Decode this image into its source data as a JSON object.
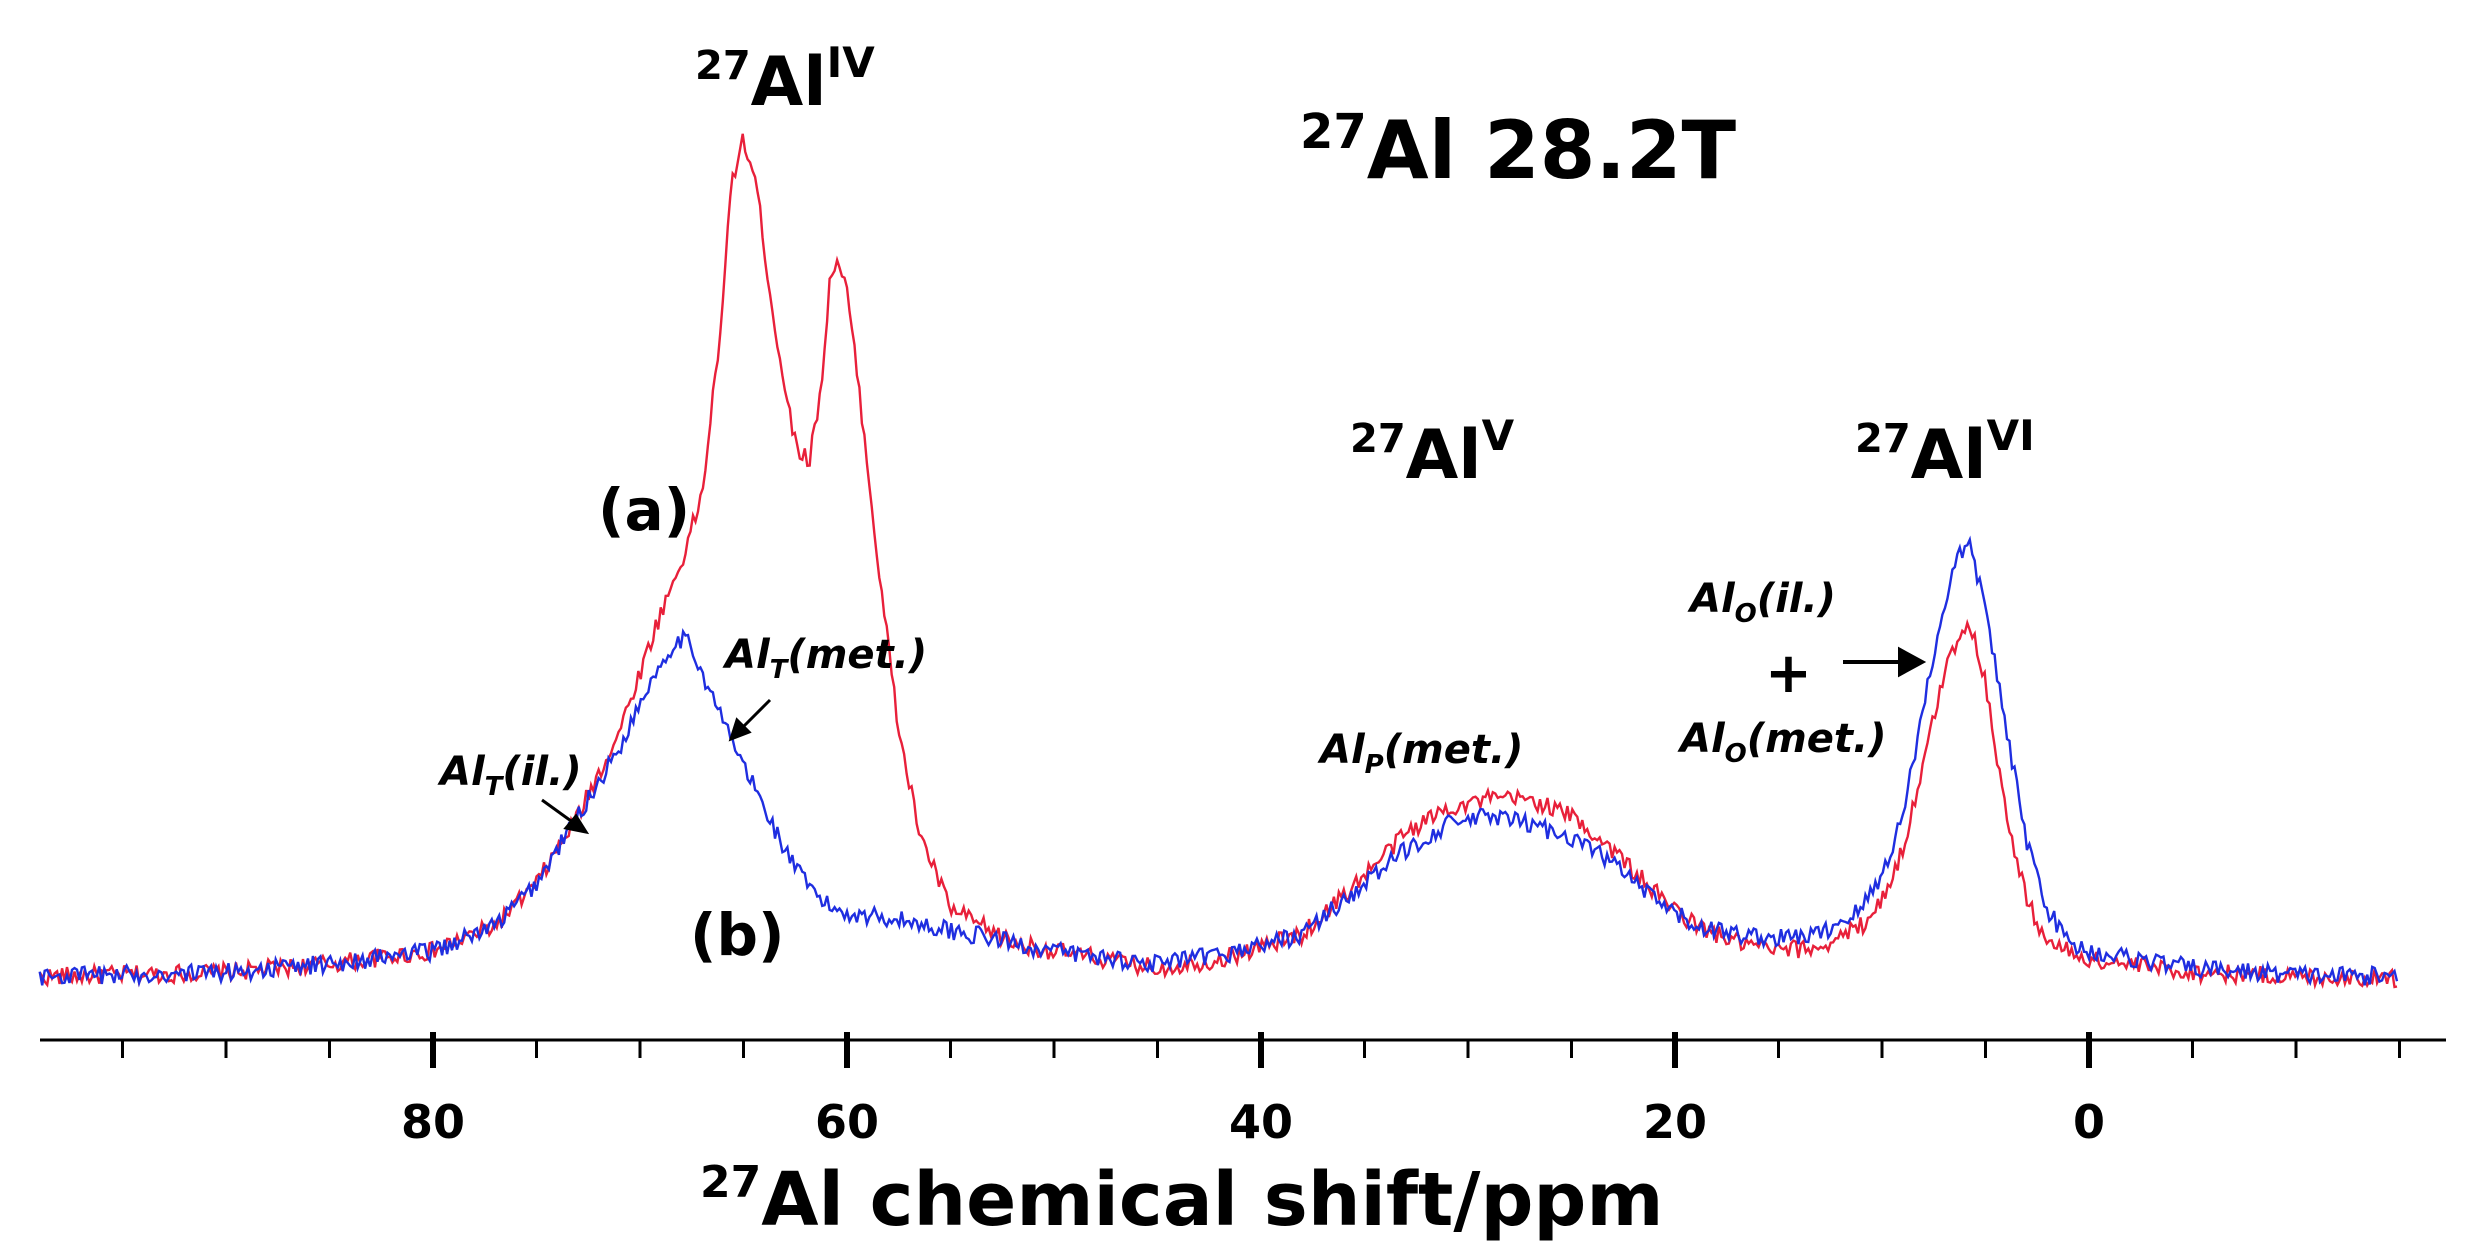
{
  "chart_data": {
    "type": "line",
    "title": {
      "iso": "27",
      "element": "Al",
      "field": "28.2T"
    },
    "xlabel": {
      "iso": "27",
      "text": "Al chemical shift/ppm"
    },
    "xlim": [
      99,
      -15
    ],
    "x_reversed": true,
    "major_ticks": [
      80,
      60,
      40,
      20,
      0
    ],
    "minor_tick_step": 5,
    "region_labels": [
      {
        "id": "al4",
        "iso": "27",
        "element": "Al",
        "sup": "IV"
      },
      {
        "id": "al5",
        "iso": "27",
        "element": "Al",
        "sup": "V"
      },
      {
        "id": "al6",
        "iso": "27",
        "element": "Al",
        "sup": "VI"
      }
    ],
    "annotations": [
      {
        "id": "alt-il",
        "base": "Al",
        "sub": "T",
        "rest": "(il.)"
      },
      {
        "id": "alt-met",
        "base": "Al",
        "sub": "T",
        "rest": "(met.)"
      },
      {
        "id": "alp-met",
        "base": "Al",
        "sub": "P",
        "rest": "(met.)"
      },
      {
        "id": "alo-il",
        "base": "Al",
        "sub": "O",
        "rest": "(il.)"
      },
      {
        "id": "plus",
        "text": "+"
      },
      {
        "id": "alo-met",
        "base": "Al",
        "sub": "O",
        "rest": "(met.)"
      }
    ],
    "series": [
      {
        "name": "(a)",
        "color": "#e8203a",
        "points": [
          [
            99,
            0.01
          ],
          [
            90,
            0.015
          ],
          [
            85,
            0.025
          ],
          [
            80,
            0.04
          ],
          [
            77,
            0.07
          ],
          [
            75,
            0.12
          ],
          [
            73,
            0.2
          ],
          [
            71,
            0.3
          ],
          [
            69,
            0.44
          ],
          [
            68,
            0.5
          ],
          [
            67,
            0.58
          ],
          [
            66,
            0.8
          ],
          [
            65.6,
            0.95
          ],
          [
            65,
            1.0
          ],
          [
            64.4,
            0.95
          ],
          [
            63.5,
            0.78
          ],
          [
            62.5,
            0.64
          ],
          [
            61.8,
            0.62
          ],
          [
            61.2,
            0.72
          ],
          [
            60.8,
            0.84
          ],
          [
            60.5,
            0.86
          ],
          [
            60,
            0.82
          ],
          [
            59.3,
            0.68
          ],
          [
            58.5,
            0.5
          ],
          [
            57.5,
            0.3
          ],
          [
            56.5,
            0.18
          ],
          [
            55,
            0.09
          ],
          [
            52,
            0.05
          ],
          [
            50,
            0.04
          ],
          [
            45,
            0.02
          ],
          [
            42,
            0.03
          ],
          [
            38,
            0.06
          ],
          [
            35,
            0.13
          ],
          [
            33,
            0.18
          ],
          [
            31,
            0.21
          ],
          [
            29,
            0.22
          ],
          [
            27,
            0.22
          ],
          [
            25,
            0.2
          ],
          [
            23,
            0.16
          ],
          [
            21,
            0.11
          ],
          [
            19,
            0.07
          ],
          [
            17,
            0.05
          ],
          [
            15,
            0.04
          ],
          [
            13,
            0.045
          ],
          [
            11,
            0.07
          ],
          [
            10,
            0.1
          ],
          [
            9,
            0.16
          ],
          [
            8,
            0.26
          ],
          [
            7,
            0.37
          ],
          [
            6.2,
            0.42
          ],
          [
            5.8,
            0.43
          ],
          [
            5,
            0.36
          ],
          [
            4,
            0.2
          ],
          [
            3,
            0.1
          ],
          [
            2,
            0.05
          ],
          [
            0,
            0.03
          ],
          [
            -5,
            0.015
          ],
          [
            -10,
            0.01
          ],
          [
            -15,
            0.008
          ]
        ]
      },
      {
        "name": "(b)",
        "color": "#1f2ee0",
        "points": [
          [
            99,
            0.01
          ],
          [
            90,
            0.015
          ],
          [
            85,
            0.025
          ],
          [
            80,
            0.04
          ],
          [
            77,
            0.07
          ],
          [
            75,
            0.12
          ],
          [
            73,
            0.2
          ],
          [
            71,
            0.28
          ],
          [
            69.5,
            0.36
          ],
          [
            68.5,
            0.4
          ],
          [
            68,
            0.41
          ],
          [
            67.5,
            0.4
          ],
          [
            66.5,
            0.34
          ],
          [
            65,
            0.26
          ],
          [
            64,
            0.21
          ],
          [
            63,
            0.16
          ],
          [
            62,
            0.12
          ],
          [
            61,
            0.095
          ],
          [
            60,
            0.085
          ],
          [
            58,
            0.08
          ],
          [
            55,
            0.065
          ],
          [
            52,
            0.05
          ],
          [
            50,
            0.04
          ],
          [
            45,
            0.025
          ],
          [
            42,
            0.035
          ],
          [
            38,
            0.06
          ],
          [
            35,
            0.12
          ],
          [
            33,
            0.16
          ],
          [
            31,
            0.19
          ],
          [
            29,
            0.2
          ],
          [
            27,
            0.19
          ],
          [
            25,
            0.175
          ],
          [
            23,
            0.145
          ],
          [
            21,
            0.1
          ],
          [
            19,
            0.07
          ],
          [
            17,
            0.06
          ],
          [
            15,
            0.055
          ],
          [
            13,
            0.06
          ],
          [
            11,
            0.09
          ],
          [
            10,
            0.13
          ],
          [
            9,
            0.2
          ],
          [
            8,
            0.33
          ],
          [
            7,
            0.45
          ],
          [
            6.3,
            0.51
          ],
          [
            5.8,
            0.52
          ],
          [
            5,
            0.45
          ],
          [
            4,
            0.3
          ],
          [
            3,
            0.17
          ],
          [
            2,
            0.09
          ],
          [
            1,
            0.05
          ],
          [
            0,
            0.04
          ],
          [
            -5,
            0.02
          ],
          [
            -10,
            0.012
          ],
          [
            -15,
            0.01
          ]
        ]
      }
    ]
  }
}
